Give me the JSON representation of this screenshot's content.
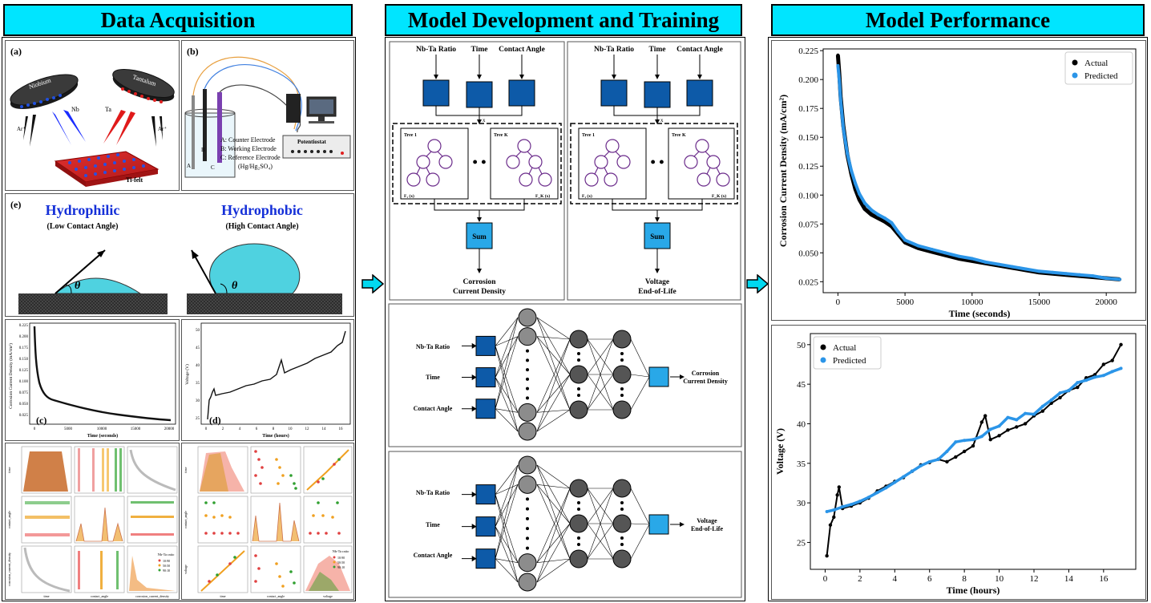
{
  "headers": {
    "left": "Data Acquisition",
    "middle": "Model Development and Training",
    "right": "Model Performance"
  },
  "panel_a": {
    "label": "(a)",
    "target_left": "Niobium",
    "target_right": "Tantalum",
    "nb": "Nb",
    "ta": "Ta",
    "ar_left": "Ar⁺",
    "ar_right": "Ar⁺",
    "substrate": "Ti-felt"
  },
  "panel_b": {
    "label": "(b)",
    "electrode_labels": [
      "A",
      "B",
      "C"
    ],
    "legend_a": "A: Counter Electrode",
    "legend_b": "B: Working Electrode",
    "legend_c": "C: Reference Electrode",
    "legend_c2": "(Hg/Hg₂SO₄)",
    "potentiostat": "Potentiostat"
  },
  "panel_e": {
    "label": "(e)",
    "hydrophilic_title": "Hydrophilic",
    "hydrophilic_sub": "(Low Contact Angle)",
    "hydrophobic_title": "Hydrophobic",
    "hydrophobic_sub": "(High Contact Angle)",
    "theta": "θ"
  },
  "panel_c": {
    "label": "(c)",
    "ylabel": "Corrosion Current Density (mA/cm²)",
    "xlabel": "Time (seconds)",
    "xticks": [
      "0",
      "5000",
      "10000",
      "15000",
      "20000"
    ],
    "yticks": [
      "0.225",
      "0.200",
      "0.175",
      "0.150",
      "0.125",
      "0.100",
      "0.075",
      "0.050",
      "0.025"
    ]
  },
  "panel_d": {
    "label": "(d)",
    "ylabel": "Voltage (V)",
    "xlabel": "Time (hours)",
    "xticks": [
      "0",
      "2",
      "4",
      "6",
      "8",
      "10",
      "12",
      "14",
      "16"
    ],
    "yticks": [
      "50",
      "45",
      "40",
      "35",
      "30",
      "25"
    ]
  },
  "pairplots": {
    "left_ylabels": [
      "time",
      "contact_angle",
      "corrosion_current_density"
    ],
    "left_xlabels": [
      "time",
      "contact_angle",
      "corrosion_current_density"
    ],
    "right_ylabels": [
      "time",
      "contact_angle",
      "voltage"
    ],
    "right_xlabels": [
      "time",
      "contact_angle",
      "voltage"
    ],
    "legend_title": "Nb-Ta ratio",
    "legend_items": [
      "10:90",
      "50:50",
      "90:10"
    ]
  },
  "rf": {
    "inputs": [
      "Nb-Ta Ratio",
      "Time",
      "Contact Angle"
    ],
    "x": "x",
    "tree1": "Tree 1",
    "treek": "Tree K",
    "f1": "F₁ (x)",
    "fk": "F_K (x)",
    "dots": "• •",
    "sum": "Sum",
    "out_left_1": "Corrosion",
    "out_left_2": "Current Density",
    "out_right_1": "Voltage",
    "out_right_2": "End-of-Life"
  },
  "nn1": {
    "inputs": [
      "Nb-Ta Ratio",
      "Time",
      "Contact Angle"
    ],
    "out_1": "Corrosion",
    "out_2": "Current Density"
  },
  "nn2": {
    "inputs": [
      "Nb-Ta Ratio",
      "Time",
      "Contact Angle"
    ],
    "out_1": "Voltage",
    "out_2": "End-of-Life"
  },
  "colors": {
    "header": "#00e5ff",
    "actual": "#000000",
    "predicted": "#2b95e8",
    "node_dark": "#0d5aa8",
    "node_light": "#29a8e8"
  },
  "chart_data": [
    {
      "type": "scatter",
      "xlabel": "Time (seconds)",
      "ylabel": "Corrosion Current Density (mA/cm²)",
      "xticks": [
        "0",
        "5000",
        "10000",
        "15000",
        "20000"
      ],
      "yticks": [
        "0.225",
        "0.200",
        "0.175",
        "0.150",
        "0.125",
        "0.100",
        "0.075",
        "0.050",
        "0.025"
      ],
      "xlim": [
        -1100,
        22200
      ],
      "ylim": [
        0.0155,
        0.2265
      ],
      "legend_position": "top-right",
      "series": [
        {
          "name": "Actual",
          "x": [
            0,
            100,
            200,
            400,
            700,
            1000,
            1300,
            1600,
            2000,
            2500,
            3000,
            3500,
            4000,
            4500,
            5000,
            6000,
            7000,
            8000,
            9000,
            10000,
            11000,
            12000,
            13000,
            14000,
            15000,
            16000,
            17000,
            18000,
            19000,
            20000,
            21000
          ],
          "y": [
            0.221,
            0.205,
            0.185,
            0.16,
            0.135,
            0.118,
            0.105,
            0.096,
            0.088,
            0.083,
            0.08,
            0.077,
            0.073,
            0.066,
            0.059,
            0.054,
            0.051,
            0.048,
            0.045,
            0.043,
            0.041,
            0.039,
            0.037,
            0.035,
            0.033,
            0.032,
            0.031,
            0.03,
            0.029,
            0.028,
            0.027
          ]
        },
        {
          "name": "Predicted",
          "x": [
            0,
            100,
            200,
            400,
            700,
            1000,
            1300,
            1600,
            2000,
            2500,
            3000,
            3500,
            4000,
            4500,
            5000,
            6000,
            7000,
            8000,
            9000,
            10000,
            11000,
            12000,
            13000,
            14000,
            15000,
            16000,
            17000,
            18000,
            19000,
            20000,
            21000
          ],
          "y": [
            0.212,
            0.2,
            0.182,
            0.158,
            0.136,
            0.121,
            0.11,
            0.101,
            0.093,
            0.087,
            0.083,
            0.08,
            0.076,
            0.068,
            0.061,
            0.056,
            0.053,
            0.05,
            0.047,
            0.045,
            0.042,
            0.04,
            0.038,
            0.036,
            0.034,
            0.033,
            0.032,
            0.031,
            0.03,
            0.028,
            0.027
          ]
        }
      ]
    },
    {
      "type": "scatter",
      "xlabel": "Time (hours)",
      "ylabel": "Voltage (V)",
      "xticks": [
        "0",
        "2",
        "4",
        "6",
        "8",
        "10",
        "12",
        "14",
        "16"
      ],
      "yticks": [
        "50",
        "45",
        "40",
        "35",
        "30",
        "25"
      ],
      "xlim": [
        -0.85,
        17.85
      ],
      "ylim": [
        21.6,
        51.4
      ],
      "legend_position": "top-left",
      "series": [
        {
          "name": "Actual",
          "x": [
            0.1,
            0.3,
            0.5,
            0.7,
            0.8,
            1.0,
            1.5,
            2.0,
            2.5,
            3.0,
            3.5,
            4.0,
            4.5,
            5.0,
            5.5,
            6.0,
            6.5,
            7.0,
            7.5,
            8.0,
            8.5,
            9.0,
            9.2,
            9.5,
            10.0,
            10.5,
            11.0,
            11.5,
            12.0,
            12.5,
            13.0,
            13.5,
            14.0,
            14.5,
            15.0,
            15.5,
            16.0,
            16.5,
            17.0
          ],
          "y": [
            23.3,
            27.2,
            28.2,
            31.0,
            32.0,
            29.3,
            29.6,
            30.0,
            30.6,
            31.5,
            32.1,
            32.7,
            33.2,
            34.0,
            34.8,
            35.1,
            35.5,
            35.2,
            35.8,
            36.5,
            37.2,
            40.2,
            41.0,
            38.0,
            38.5,
            39.2,
            39.6,
            40.0,
            41.0,
            41.6,
            42.6,
            43.3,
            44.2,
            44.6,
            45.8,
            46.2,
            47.5,
            48.0,
            50.0
          ]
        },
        {
          "name": "Predicted",
          "x": [
            0.1,
            0.5,
            1.0,
            1.5,
            2.0,
            2.5,
            3.0,
            3.5,
            4.0,
            4.5,
            5.0,
            5.5,
            6.0,
            6.5,
            7.0,
            7.5,
            8.0,
            8.5,
            9.0,
            9.5,
            10.0,
            10.5,
            11.0,
            11.5,
            12.0,
            12.5,
            13.0,
            13.5,
            14.0,
            14.5,
            15.0,
            15.5,
            16.0,
            16.5,
            17.0
          ],
          "y": [
            28.9,
            29.1,
            29.5,
            29.8,
            30.2,
            30.7,
            31.3,
            31.9,
            32.6,
            33.3,
            34.0,
            34.7,
            35.2,
            35.5,
            36.5,
            37.7,
            37.9,
            38.0,
            38.4,
            39.3,
            39.7,
            40.8,
            40.5,
            41.3,
            41.2,
            42.2,
            43.0,
            43.9,
            44.2,
            45.2,
            45.5,
            45.9,
            46.1,
            46.6,
            47.0
          ]
        }
      ]
    }
  ]
}
